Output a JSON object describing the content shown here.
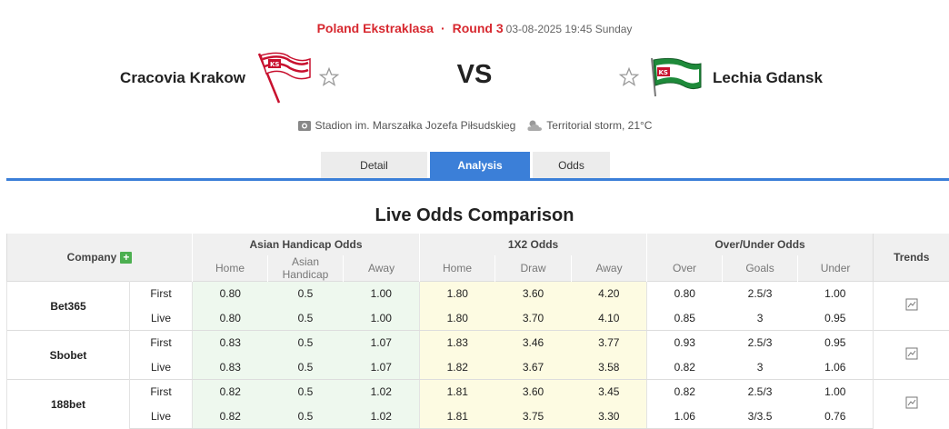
{
  "match": {
    "league": "Poland Ekstraklasa",
    "separator": "·",
    "round": "Round 3",
    "datetime": "03-08-2025 19:45 Sunday",
    "home_team": "Cracovia Krakow",
    "away_team": "Lechia Gdansk",
    "vs": "VS",
    "venue": "Stadion im. Marszałka Jozefa Piłsudskieg",
    "weather": "Territorial storm, 21°C"
  },
  "tabs": [
    "Detail",
    "Analysis",
    "Odds"
  ],
  "active_tab": "Analysis",
  "section_title": "Live Odds Comparison",
  "table": {
    "company_header": "Company",
    "groups": [
      "Asian Handicap Odds",
      "1X2 Odds",
      "Over/Under Odds"
    ],
    "trends_header": "Trends",
    "subheaders": {
      "ah": [
        "Home",
        "Asian Handicap",
        "Away"
      ],
      "x12": [
        "Home",
        "Draw",
        "Away"
      ],
      "ou": [
        "Over",
        "Goals",
        "Under"
      ]
    },
    "rows": [
      {
        "company": "Bet365",
        "first": {
          "type": "First",
          "ah": [
            "0.80",
            "0.5",
            "1.00"
          ],
          "x12": [
            "1.80",
            "3.60",
            "4.20"
          ],
          "ou": [
            "0.80",
            "2.5/3",
            "1.00"
          ]
        },
        "live": {
          "type": "Live",
          "ah": [
            "0.80",
            "0.5",
            "1.00"
          ],
          "x12": [
            "1.80",
            "3.70",
            "4.10"
          ],
          "ou": [
            "0.85",
            "3",
            "0.95"
          ]
        }
      },
      {
        "company": "Sbobet",
        "first": {
          "type": "First",
          "ah": [
            "0.83",
            "0.5",
            "1.07"
          ],
          "x12": [
            "1.83",
            "3.46",
            "3.77"
          ],
          "ou": [
            "0.93",
            "2.5/3",
            "0.95"
          ]
        },
        "live": {
          "type": "Live",
          "ah": [
            "0.83",
            "0.5",
            "1.07"
          ],
          "x12": [
            "1.82",
            "3.67",
            "3.58"
          ],
          "ou": [
            "0.82",
            "3",
            "1.06"
          ]
        }
      },
      {
        "company": "188bet",
        "first": {
          "type": "First",
          "ah": [
            "0.82",
            "0.5",
            "1.02"
          ],
          "x12": [
            "1.81",
            "3.60",
            "3.45"
          ],
          "ou": [
            "0.82",
            "2.5/3",
            "1.00"
          ]
        },
        "live": {
          "type": "Live",
          "ah": [
            "0.82",
            "0.5",
            "1.02"
          ],
          "x12": [
            "1.81",
            "3.75",
            "3.30"
          ],
          "ou": [
            "1.06",
            "3/3.5",
            "0.76"
          ]
        }
      }
    ]
  },
  "colors": {
    "accent": "#3b7fd8",
    "league_red": "#d7282f",
    "ah_bg": "#eef8ee",
    "x12_bg": "#fdfbe2"
  },
  "icons": {
    "favorite": "star-outline-icon",
    "venue": "stadium-icon",
    "weather": "partly-cloudy-icon",
    "trend": "chart-icon",
    "add": "plus-icon"
  }
}
